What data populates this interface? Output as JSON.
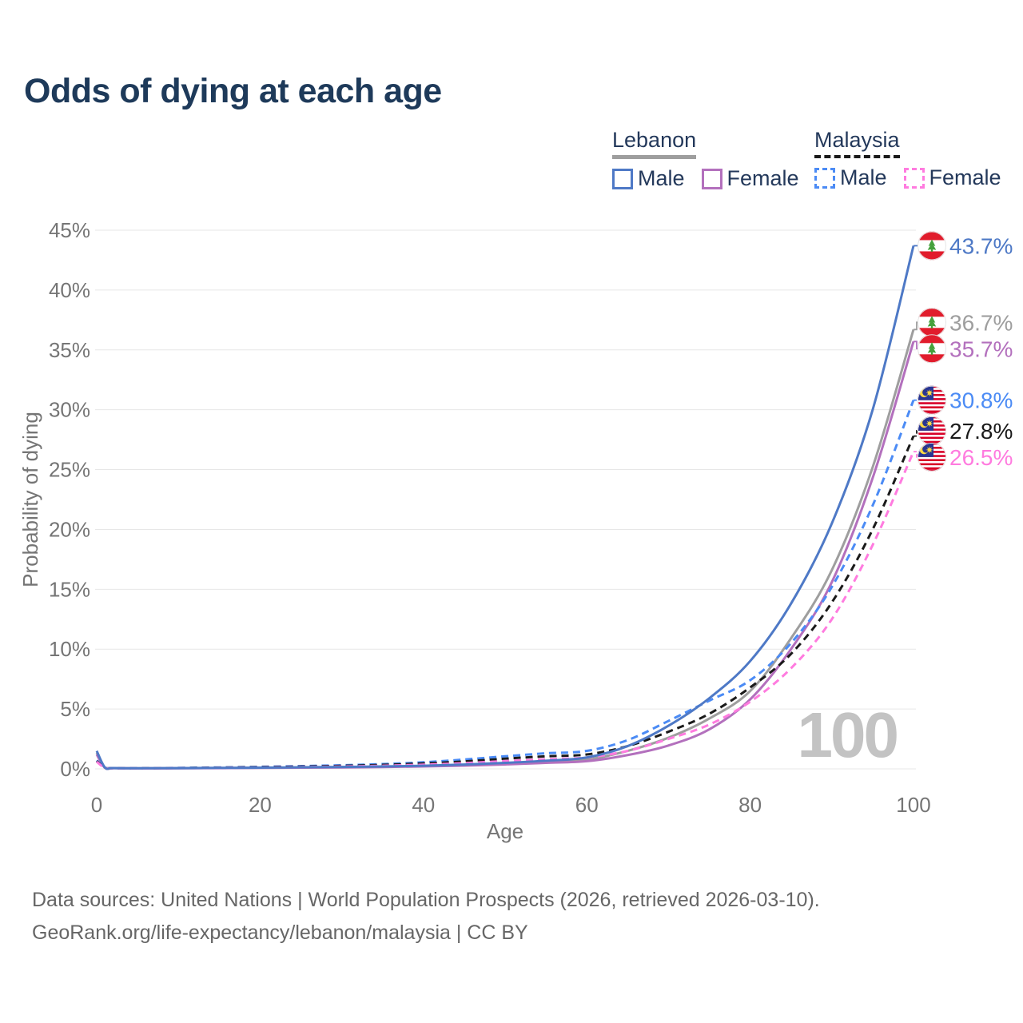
{
  "title": "Odds of dying at each age",
  "legend": {
    "groups": [
      {
        "label": "Lebanon",
        "style": "solid",
        "color": "#9e9e9e",
        "items": [
          {
            "label": "Male",
            "style": "solid",
            "color": "#4e79c6"
          },
          {
            "label": "Female",
            "style": "solid",
            "color": "#b370bd"
          }
        ]
      },
      {
        "label": "Malaysia",
        "style": "dashed",
        "color": "#1a1a1a",
        "items": [
          {
            "label": "Male",
            "style": "dashed",
            "color": "#4b8bf5"
          },
          {
            "label": "Female",
            "style": "dashed",
            "color": "#ff7bdf"
          }
        ]
      }
    ]
  },
  "footer": {
    "line1": "Data sources: United Nations | World Population Prospects (2026, retrieved 2026-03-10).",
    "line2": "GeoRank.org/life-expectancy/lebanon/malaysia | CC BY"
  },
  "chart_data": {
    "type": "line",
    "title": "Odds of dying at each age",
    "xlabel": "Age",
    "ylabel": "Probability of dying",
    "xlim": [
      0,
      100
    ],
    "ylim": [
      0,
      45
    ],
    "x_ticks": [
      0,
      20,
      40,
      60,
      80,
      100
    ],
    "y_tick_step": 5,
    "y_tick_suffix": "%",
    "grid": true,
    "legend_position": "top-right",
    "watermark": "100",
    "x": [
      0,
      1,
      2,
      5,
      10,
      15,
      20,
      25,
      30,
      35,
      40,
      45,
      50,
      55,
      60,
      65,
      70,
      75,
      80,
      85,
      90,
      95,
      100
    ],
    "series": [
      {
        "name": "Lebanon Male",
        "country": "Lebanon",
        "sex": "Male",
        "color": "#4e79c6",
        "dash": false,
        "flag": "lebanon",
        "end_label": "43.7%",
        "values": [
          1.5,
          0.12,
          0.07,
          0.05,
          0.06,
          0.08,
          0.1,
          0.13,
          0.16,
          0.2,
          0.26,
          0.36,
          0.5,
          0.68,
          0.95,
          1.9,
          3.6,
          5.9,
          9.0,
          13.8,
          20.5,
          30.0,
          43.7
        ]
      },
      {
        "name": "Lebanon",
        "country": "Lebanon",
        "sex": "Both",
        "color": "#9e9e9e",
        "dash": false,
        "flag": "lebanon",
        "end_label": "36.7%",
        "values": [
          1.35,
          0.1,
          0.06,
          0.045,
          0.055,
          0.07,
          0.09,
          0.11,
          0.14,
          0.18,
          0.23,
          0.31,
          0.43,
          0.58,
          0.78,
          1.5,
          2.6,
          4.2,
          6.5,
          10.9,
          16.6,
          25.2,
          36.7
        ]
      },
      {
        "name": "Lebanon Female",
        "country": "Lebanon",
        "sex": "Female",
        "color": "#b370bd",
        "dash": false,
        "flag": "lebanon",
        "end_label": "35.7%",
        "values": [
          1.2,
          0.09,
          0.055,
          0.04,
          0.05,
          0.06,
          0.08,
          0.1,
          0.12,
          0.15,
          0.2,
          0.27,
          0.37,
          0.5,
          0.64,
          1.15,
          1.95,
          3.3,
          5.8,
          10.0,
          15.6,
          24.3,
          35.7
        ]
      },
      {
        "name": "Malaysia Male",
        "country": "Malaysia",
        "sex": "Male",
        "color": "#4b8bf5",
        "dash": true,
        "flag": "malaysia",
        "end_label": "30.8%",
        "values": [
          0.7,
          0.1,
          0.06,
          0.05,
          0.08,
          0.12,
          0.17,
          0.23,
          0.3,
          0.4,
          0.55,
          0.78,
          1.05,
          1.3,
          1.5,
          2.4,
          4.0,
          5.7,
          7.4,
          10.5,
          15.2,
          22.0,
          30.8
        ]
      },
      {
        "name": "Malaysia",
        "country": "Malaysia",
        "sex": "Both",
        "color": "#1a1a1a",
        "dash": true,
        "flag": "malaysia",
        "end_label": "27.8%",
        "values": [
          0.65,
          0.09,
          0.055,
          0.045,
          0.07,
          0.1,
          0.14,
          0.19,
          0.25,
          0.33,
          0.45,
          0.62,
          0.85,
          1.05,
          1.2,
          1.9,
          3.1,
          4.6,
          6.8,
          9.6,
          13.9,
          20.0,
          27.8
        ]
      },
      {
        "name": "Malaysia Female",
        "country": "Malaysia",
        "sex": "Female",
        "color": "#ff7bdf",
        "dash": true,
        "flag": "malaysia",
        "end_label": "26.5%",
        "values": [
          0.6,
          0.08,
          0.05,
          0.04,
          0.06,
          0.08,
          0.11,
          0.15,
          0.2,
          0.26,
          0.35,
          0.48,
          0.65,
          0.8,
          0.95,
          1.5,
          2.5,
          3.7,
          5.6,
          8.4,
          12.5,
          18.7,
          26.5
        ]
      }
    ]
  }
}
